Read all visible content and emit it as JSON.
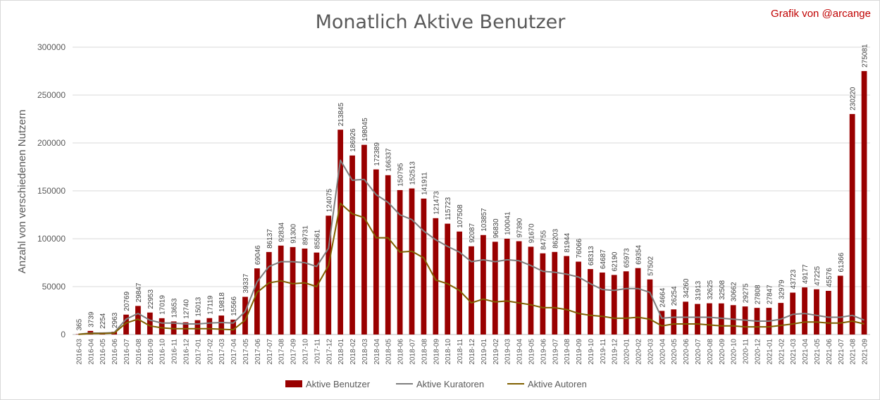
{
  "chart_data": {
    "type": "bar",
    "title": "Monatlich Aktive Benutzer",
    "credit": "Grafik von @arcange",
    "ylabel": "Anzahl von verschiedenen Nutzern",
    "xlabel": "",
    "ylim": [
      0,
      300000
    ],
    "yticks": [
      "0",
      "50000",
      "100000",
      "150000",
      "200000",
      "250000",
      "300000"
    ],
    "grid": true,
    "legend_position": "bottom",
    "colors": {
      "bars": "#990000",
      "curators": "#7f7f7f",
      "authors": "#806000",
      "credit": "#c00000",
      "title": "#595959"
    },
    "categories": [
      "2016-03",
      "2016-04",
      "2016-05",
      "2016-06",
      "2016-07",
      "2016-08",
      "2016-09",
      "2016-10",
      "2016-11",
      "2016-12",
      "2017-01",
      "2017-02",
      "2017-03",
      "2017-04",
      "2017-05",
      "2017-06",
      "2017-07",
      "2017-08",
      "2017-09",
      "2017-10",
      "2017-11",
      "2017-12",
      "2018-01",
      "2018-02",
      "2018-03",
      "2018-04",
      "2018-05",
      "2018-06",
      "2018-07",
      "2018-08",
      "2018-09",
      "2018-10",
      "2018-11",
      "2018-12",
      "2019-01",
      "2019-02",
      "2019-03",
      "2019-04",
      "2019-05",
      "2019-06",
      "2019-07",
      "2019-08",
      "2019-09",
      "2019-10",
      "2019-11",
      "2019-12",
      "2020-01",
      "2020-02",
      "2020-03",
      "2020-04",
      "2020-05",
      "2020-06",
      "2020-07",
      "2020-08",
      "2020-09",
      "2020-10",
      "2020-11",
      "2020-12",
      "2021-01",
      "2021-02",
      "2021-03",
      "2021-04",
      "2021-05",
      "2021-06",
      "2021-07",
      "2021-08",
      "2021-09"
    ],
    "series": [
      {
        "name": "Aktive Benutzer",
        "kind": "bar",
        "values": [
          365,
          3739,
          2254,
          2963,
          20769,
          29847,
          22953,
          17019,
          13653,
          12740,
          15013,
          17119,
          19818,
          15566,
          39337,
          69046,
          86137,
          92834,
          91300,
          89731,
          85561,
          124075,
          213845,
          186926,
          198045,
          172389,
          166337,
          150795,
          152513,
          141911,
          121473,
          115723,
          107508,
          92087,
          103857,
          96830,
          100041,
          97390,
          91670,
          84755,
          86203,
          81944,
          76066,
          68313,
          64687,
          62190,
          65973,
          69354,
          57502,
          24664,
          26254,
          34260,
          31913,
          32625,
          32508,
          30662,
          29275,
          27808,
          27847,
          32979,
          43723,
          49177,
          47225,
          45576,
          61366,
          230220,
          275081
        ]
      },
      {
        "name": "Aktive Kuratoren",
        "kind": "line",
        "values": [
          300,
          1500,
          1500,
          2000,
          16000,
          22000,
          15000,
          12000,
          12000,
          11000,
          11000,
          12000,
          12500,
          12000,
          24000,
          55000,
          71000,
          76000,
          76000,
          75000,
          71000,
          90000,
          182000,
          161000,
          162000,
          146000,
          138000,
          125000,
          120000,
          108000,
          99000,
          92000,
          86000,
          76000,
          78000,
          76000,
          78000,
          77000,
          72000,
          66000,
          65000,
          63000,
          60000,
          53000,
          47000,
          46000,
          48000,
          48000,
          44000,
          17000,
          18000,
          18000,
          18000,
          18000,
          17000,
          16000,
          15000,
          14000,
          14000,
          16000,
          21000,
          22000,
          20000,
          18000,
          18000,
          20000,
          15000
        ]
      },
      {
        "name": "Aktive Autoren",
        "kind": "line",
        "values": [
          200,
          1000,
          1000,
          1500,
          12000,
          16000,
          9000,
          7000,
          6000,
          6000,
          6000,
          6000,
          5500,
          5000,
          15000,
          44000,
          54000,
          56000,
          53000,
          54000,
          50000,
          72000,
          137000,
          126000,
          122000,
          101000,
          101000,
          86000,
          87000,
          80000,
          57000,
          53000,
          46000,
          33000,
          37000,
          34000,
          35000,
          33000,
          31000,
          28000,
          28000,
          26000,
          22000,
          20000,
          19000,
          17000,
          17000,
          18000,
          16000,
          9000,
          11000,
          11000,
          11000,
          10000,
          9000,
          9000,
          8000,
          8000,
          8000,
          9500,
          11000,
          13000,
          13000,
          12000,
          12000,
          14000,
          11000
        ]
      }
    ]
  }
}
